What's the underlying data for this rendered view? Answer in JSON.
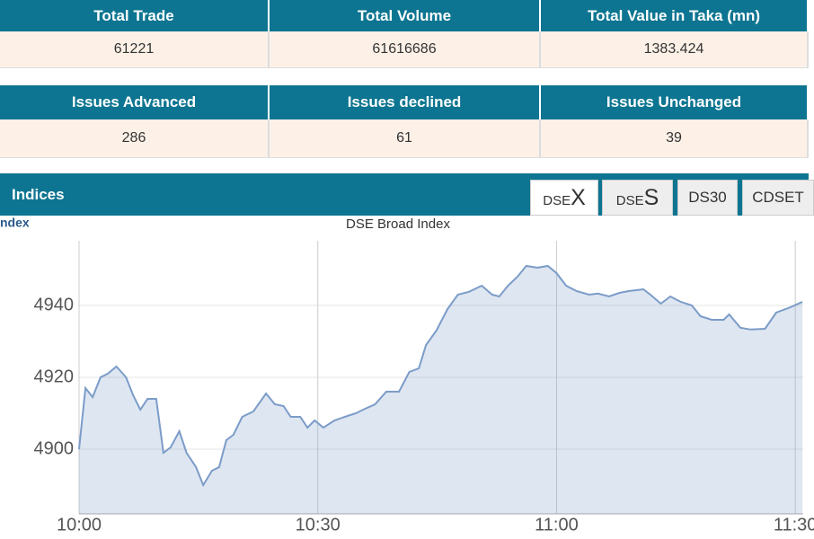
{
  "summary": {
    "headers": [
      "Total Trade",
      "Total Volume",
      "Total Value in Taka (mn)"
    ],
    "values": [
      "61221",
      "61616686",
      "1383.424"
    ]
  },
  "issues": {
    "headers": [
      "Issues Advanced",
      "Issues declined",
      "Issues Unchanged"
    ],
    "values": [
      "286",
      "61",
      "39"
    ]
  },
  "panel": {
    "title": "Indices",
    "tabs": [
      "DSEX",
      "DSES",
      "DS30",
      "CDSET"
    ],
    "side_label": "ndex"
  },
  "chart_data": {
    "type": "line",
    "title": "DSE Broad Index",
    "x": [
      0,
      0.8,
      1.7,
      2.7,
      3.6,
      4.7,
      5.9,
      6.8,
      7.7,
      8.6,
      9.7,
      10.6,
      11.5,
      12.6,
      13.5,
      14.7,
      15.6,
      16.7,
      17.6,
      18.5,
      19.4,
      20.5,
      21.9,
      23.5,
      24.6,
      25.7,
      26.6,
      27.8,
      28.7,
      29.6,
      30.7,
      32.1,
      33.4,
      34.8,
      35.7,
      37.2,
      38.6,
      40.2,
      41.5,
      42.7,
      43.6,
      44.9,
      46.3,
      47.6,
      49,
      50.6,
      51.9,
      52.8,
      53.9,
      55.1,
      56.2,
      57.6,
      58.9,
      60,
      61.2,
      62.5,
      64.1,
      65.2,
      66.6,
      67.9,
      69.1,
      70.9,
      71.8,
      73.1,
      74.3,
      75.6,
      77,
      78.1,
      79.5,
      81,
      81.7,
      83.1,
      84.4,
      86.2,
      87.6,
      89.4,
      90.9
    ],
    "series": [
      {
        "name": "DSEX",
        "color": "#7b9cc8",
        "values": [
          4900,
          4917,
          4914.5,
          4920,
          4921,
          4923,
          4920,
          4915,
          4911,
          4914,
          4914,
          4899,
          4900.5,
          4905,
          4899,
          4895,
          4890,
          4894,
          4895,
          4902.5,
          4904,
          4909,
          4910.5,
          4915.5,
          4912.5,
          4912,
          4909,
          4909,
          4906,
          4908,
          4906,
          4908,
          4909,
          4910,
          4911,
          4912.5,
          4916,
          4916,
          4921.5,
          4922.5,
          4929,
          4933,
          4939,
          4943,
          4943.8,
          4945.5,
          4943,
          4942.5,
          4945.5,
          4948,
          4951,
          4950.5,
          4951,
          4949,
          4945.5,
          4944,
          4943,
          4943.3,
          4942.5,
          4943.5,
          4944,
          4944.5,
          4943,
          4940.5,
          4942.5,
          4941,
          4940,
          4937,
          4936,
          4936,
          4937.5,
          4933.8,
          4933.3,
          4933.5,
          4938,
          4939.5,
          4941
        ]
      }
    ],
    "xlim": [
      0,
      91
    ],
    "xticks": [
      {
        "value": 0,
        "label": "10:00"
      },
      {
        "value": 30,
        "label": "10:30"
      },
      {
        "value": 60,
        "label": "11:00"
      },
      {
        "value": 90,
        "label": "11:30"
      }
    ],
    "ylim": [
      4882,
      4958
    ],
    "yticks": [
      4900,
      4920,
      4940
    ],
    "grid": true
  }
}
